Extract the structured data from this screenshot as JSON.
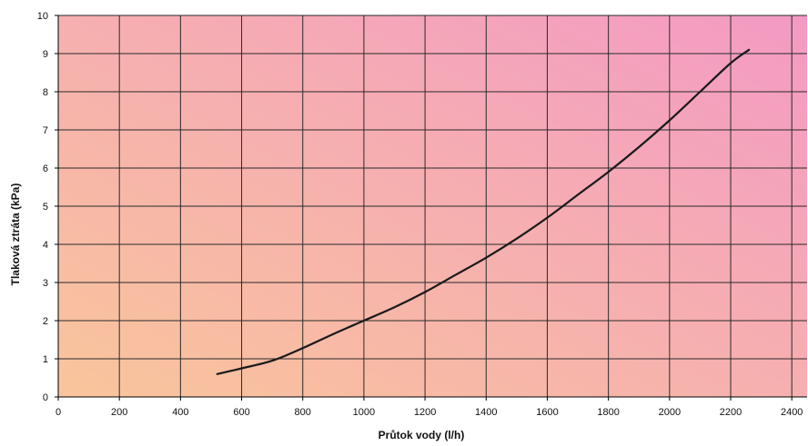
{
  "chart_data": {
    "type": "line",
    "title": "",
    "xlabel": "Průtok vody (l/h)",
    "ylabel": "Tlaková ztráta (kPa)",
    "xlim": [
      0,
      2450
    ],
    "ylim": [
      0,
      10
    ],
    "x_ticks": [
      0,
      200,
      400,
      600,
      800,
      1000,
      1200,
      1400,
      1600,
      1800,
      2000,
      2200,
      2400
    ],
    "y_ticks": [
      0,
      1,
      2,
      3,
      4,
      5,
      6,
      7,
      8,
      9,
      10
    ],
    "grid": true,
    "background_gradient": [
      "#f9c59b",
      "#f39ac4"
    ],
    "line_color": "#1a1a1a",
    "series": [
      {
        "x": [
          520,
          600,
          700,
          800,
          900,
          1000,
          1100,
          1200,
          1300,
          1400,
          1500,
          1600,
          1700,
          1800,
          1900,
          2000,
          2100,
          2200,
          2260
        ],
        "y": [
          0.6,
          0.75,
          0.95,
          1.28,
          1.65,
          2.0,
          2.35,
          2.75,
          3.2,
          3.65,
          4.15,
          4.7,
          5.3,
          5.9,
          6.55,
          7.25,
          8.0,
          8.75,
          9.1
        ]
      }
    ]
  }
}
